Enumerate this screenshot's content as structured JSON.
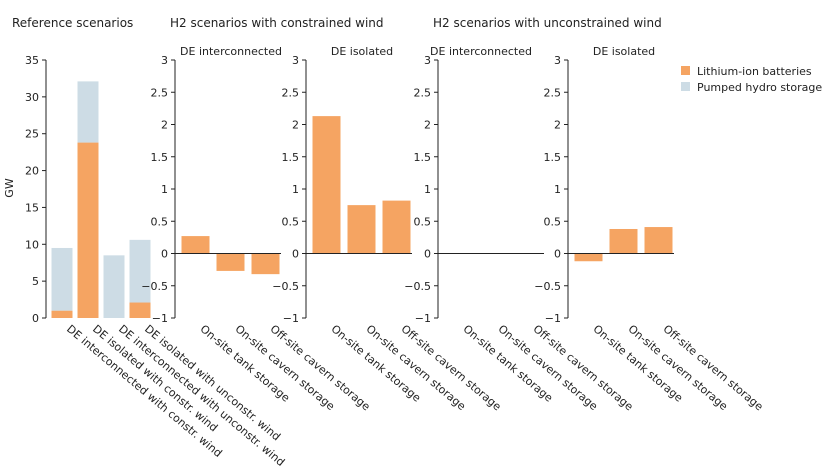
{
  "chart_data": {
    "type": "bar",
    "ylabel": "GW",
    "legend": [
      {
        "name": "Lithium-ion batteries",
        "color": "#f5a462"
      },
      {
        "name": "Pumped hydro storage",
        "color": "#cddce5"
      }
    ],
    "groups": [
      {
        "title": "Reference scenarios",
        "subtitle": "",
        "ylim": [
          0,
          35
        ],
        "ticks": [
          "0",
          "5",
          "10",
          "15",
          "20",
          "25",
          "30",
          "35"
        ],
        "categories": [
          "DE interconnected with constr. wind",
          "DE isolated with constr. wind",
          "DE interconnected with unconstr. wind",
          "DE isolated with unconstr. wind"
        ],
        "stacked": true,
        "series": [
          {
            "name": "Lithium-ion batteries",
            "values": [
              1.0,
              23.8,
              0.0,
              2.1
            ]
          },
          {
            "name": "Pumped hydro storage",
            "values": [
              8.5,
              8.3,
              8.5,
              8.5
            ]
          }
        ]
      },
      {
        "title": "H2 scenarios with constrained wind",
        "subtitle": "DE interconnected",
        "ylim": [
          -1,
          3
        ],
        "ticks": [
          "−1",
          "−0.5",
          "0",
          "0.5",
          "1",
          "1.5",
          "2",
          "2.5",
          "3"
        ],
        "categories": [
          "On-site tank storage",
          "On-site cavern storage",
          "Off-site cavern storage"
        ],
        "series": [
          {
            "name": "Lithium-ion batteries",
            "values": [
              0.27,
              -0.27,
              -0.32
            ]
          }
        ]
      },
      {
        "title": "",
        "subtitle": "DE isolated",
        "ylim": [
          -1,
          3
        ],
        "ticks": [
          "−1",
          "−0.5",
          "0",
          "0.5",
          "1",
          "1.5",
          "2",
          "2.5",
          "3"
        ],
        "categories": [
          "On-site tank storage",
          "On-site cavern storage",
          "Off-site cavern storage"
        ],
        "series": [
          {
            "name": "Lithium-ion batteries",
            "values": [
              2.13,
              0.75,
              0.82
            ]
          }
        ]
      },
      {
        "title": "H2 scenarios with unconstrained wind",
        "subtitle": "DE interconnected",
        "ylim": [
          -1,
          3
        ],
        "ticks": [
          "−1",
          "−0.5",
          "0",
          "0.5",
          "1",
          "1.5",
          "2",
          "2.5",
          "3"
        ],
        "categories": [
          "On-site tank storage",
          "On-site cavern storage",
          "Off-site cavern storage"
        ],
        "series": [
          {
            "name": "Lithium-ion batteries",
            "values": [
              0.0,
              0.0,
              0.0
            ]
          }
        ]
      },
      {
        "title": "",
        "subtitle": "DE isolated",
        "ylim": [
          -1,
          3
        ],
        "ticks": [
          "−1",
          "−0.5",
          "0",
          "0.5",
          "1",
          "1.5",
          "2",
          "2.5",
          "3"
        ],
        "categories": [
          "On-site tank storage",
          "On-site cavern storage",
          "Off-site cavern storage"
        ],
        "series": [
          {
            "name": "Lithium-ion batteries",
            "values": [
              -0.12,
              0.38,
              0.41
            ]
          }
        ]
      }
    ]
  }
}
